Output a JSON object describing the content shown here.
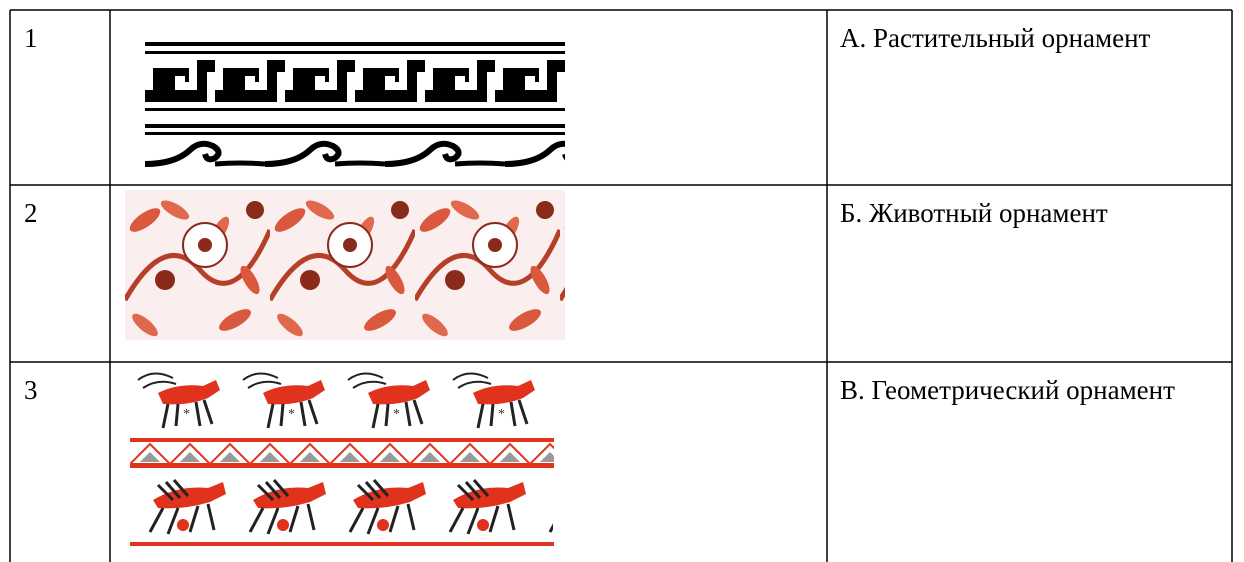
{
  "table": {
    "rows": [
      [
        "1",
        "А. Растительный орнамент"
      ],
      [
        "2",
        "Б. Животный орнамент"
      ],
      [
        "3",
        "В. Геометрический орнамент"
      ]
    ]
  }
}
